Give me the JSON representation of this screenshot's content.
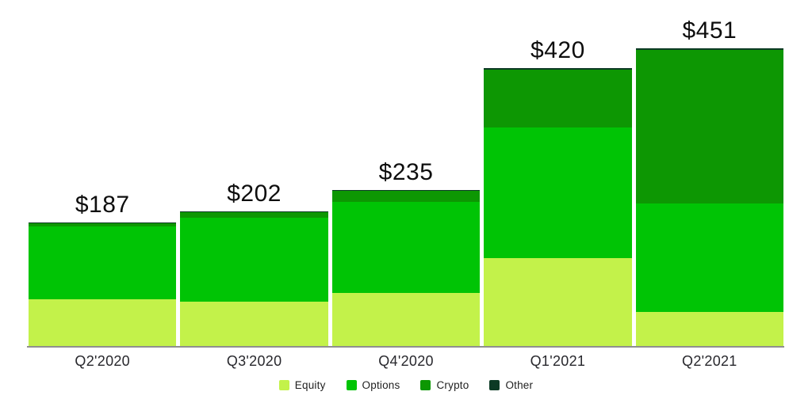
{
  "chart_data": {
    "type": "bar",
    "stacked": true,
    "title": "",
    "xlabel": "",
    "ylabel": "",
    "units": "USD millions",
    "categories": [
      "Q2'2020",
      "Q3'2020",
      "Q4'2020",
      "Q1'2021",
      "Q2'2021"
    ],
    "series": [
      {
        "name": "Equity",
        "color": "#c3f24a",
        "values": [
          71,
          67,
          80,
          133,
          52
        ]
      },
      {
        "name": "Options",
        "color": "#00c405",
        "values": [
          111,
          127,
          138,
          198,
          165
        ]
      },
      {
        "name": "Crypto",
        "color": "#0d9703",
        "values": [
          5,
          8,
          17,
          88,
          233
        ]
      },
      {
        "name": "Other",
        "color": "#0c3a24",
        "values": [
          0,
          0,
          0,
          1,
          1
        ]
      }
    ],
    "totals": [
      187,
      202,
      235,
      420,
      451
    ],
    "total_labels": [
      "$187",
      "$202",
      "$235",
      "$420",
      "$451"
    ],
    "ylim": [
      0,
      470
    ],
    "grid": false,
    "legend_position": "bottom",
    "legend_items": [
      "Equity",
      "Options",
      "Crypto",
      "Other"
    ]
  },
  "style": {
    "axis_line_color": "#8f8f8f",
    "value_label_color": "#0e0e0e",
    "tick_label_color": "#28282d",
    "background_color": "#ffffff"
  }
}
